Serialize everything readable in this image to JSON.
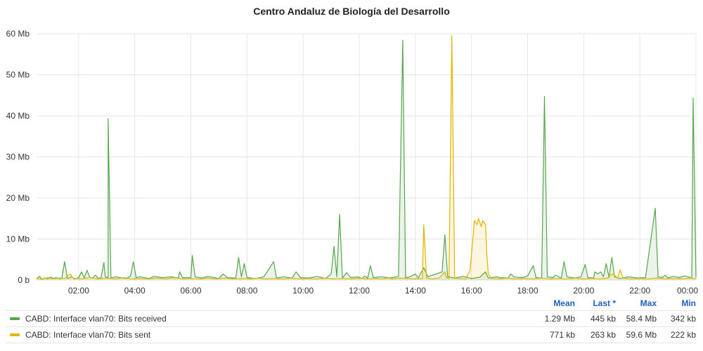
{
  "chart_data": {
    "type": "line",
    "title": "Centro Andaluz de Biología del Desarrollo",
    "xlabel": "",
    "ylabel": "",
    "x_range": [
      0.5,
      24.0
    ],
    "x_tick_labels": [
      "02:00",
      "04:00",
      "06:00",
      "08:00",
      "10:00",
      "12:00",
      "14:00",
      "16:00",
      "18:00",
      "20:00",
      "22:00",
      "00:00"
    ],
    "x_tick_values": [
      2,
      4,
      6,
      8,
      10,
      12,
      14,
      16,
      18,
      20,
      22,
      24
    ],
    "ylim": [
      0,
      60
    ],
    "y_tick_labels": [
      "0 b",
      "10 Mb",
      "20 Mb",
      "30 Mb",
      "40 Mb",
      "50 Mb",
      "60 Mb"
    ],
    "y_tick_values": [
      0,
      10,
      20,
      30,
      40,
      50,
      60
    ],
    "grid": true,
    "legend_position": "bottom",
    "series": [
      {
        "name": "CABD: Interface vlan70: Bits received",
        "color": "#56a64b",
        "points": [
          [
            0.5,
            0.3
          ],
          [
            0.6,
            0.9
          ],
          [
            0.7,
            0.2
          ],
          [
            0.8,
            0.5
          ],
          [
            0.9,
            0.3
          ],
          [
            1.0,
            0.7
          ],
          [
            1.1,
            0.4
          ],
          [
            1.2,
            0.6
          ],
          [
            1.35,
            0.3
          ],
          [
            1.4,
            0.5
          ],
          [
            1.5,
            4.5
          ],
          [
            1.6,
            0.4
          ],
          [
            1.75,
            0.8
          ],
          [
            1.85,
            0.3
          ],
          [
            2.0,
            0.6
          ],
          [
            2.1,
            2.0
          ],
          [
            2.2,
            0.5
          ],
          [
            2.3,
            2.4
          ],
          [
            2.4,
            0.6
          ],
          [
            2.5,
            0.5
          ],
          [
            2.6,
            1.2
          ],
          [
            2.7,
            0.4
          ],
          [
            2.8,
            0.6
          ],
          [
            2.9,
            4.3
          ],
          [
            2.95,
            0.8
          ],
          [
            3.05,
            0.6
          ],
          [
            3.05,
            39.3
          ],
          [
            3.15,
            0.5
          ],
          [
            3.3,
            0.8
          ],
          [
            3.5,
            0.6
          ],
          [
            3.7,
            0.4
          ],
          [
            3.85,
            1.0
          ],
          [
            3.95,
            4.5
          ],
          [
            4.05,
            0.6
          ],
          [
            4.2,
            0.8
          ],
          [
            4.5,
            0.4
          ],
          [
            4.7,
            0.9
          ],
          [
            5.0,
            0.6
          ],
          [
            5.3,
            0.8
          ],
          [
            5.55,
            0.5
          ],
          [
            5.6,
            2.0
          ],
          [
            5.7,
            0.6
          ],
          [
            6.0,
            0.6
          ],
          [
            6.05,
            6.0
          ],
          [
            6.15,
            0.8
          ],
          [
            6.4,
            0.5
          ],
          [
            6.6,
            0.9
          ],
          [
            7.0,
            0.4
          ],
          [
            7.15,
            1.5
          ],
          [
            7.3,
            0.6
          ],
          [
            7.6,
            0.5
          ],
          [
            7.7,
            5.5
          ],
          [
            7.8,
            0.8
          ],
          [
            7.9,
            4.0
          ],
          [
            8.0,
            0.6
          ],
          [
            8.3,
            0.4
          ],
          [
            8.6,
            0.8
          ],
          [
            8.95,
            4.5
          ],
          [
            9.05,
            0.5
          ],
          [
            9.3,
            0.8
          ],
          [
            9.6,
            0.5
          ],
          [
            9.75,
            2.0
          ],
          [
            9.9,
            0.6
          ],
          [
            10.2,
            0.5
          ],
          [
            10.5,
            0.9
          ],
          [
            10.8,
            0.4
          ],
          [
            11.0,
            1.5
          ],
          [
            11.1,
            8.2
          ],
          [
            11.2,
            0.8
          ],
          [
            11.3,
            16.0
          ],
          [
            11.4,
            0.5
          ],
          [
            11.55,
            1.8
          ],
          [
            11.7,
            0.6
          ],
          [
            11.95,
            0.8
          ],
          [
            12.1,
            0.4
          ],
          [
            12.2,
            1.0
          ],
          [
            12.3,
            0.5
          ],
          [
            12.4,
            3.5
          ],
          [
            12.5,
            0.6
          ],
          [
            12.8,
            0.8
          ],
          [
            13.1,
            0.5
          ],
          [
            13.4,
            0.9
          ],
          [
            13.55,
            58.4
          ],
          [
            13.65,
            0.6
          ],
          [
            13.8,
            0.8
          ],
          [
            14.0,
            1.5
          ],
          [
            14.1,
            0.5
          ],
          [
            14.3,
            3.0
          ],
          [
            14.45,
            0.8
          ],
          [
            14.6,
            1.2
          ],
          [
            14.75,
            1.5
          ],
          [
            14.95,
            2.0
          ],
          [
            15.05,
            11.0
          ],
          [
            15.15,
            0.8
          ],
          [
            15.4,
            0.5
          ],
          [
            15.7,
            0.9
          ],
          [
            16.0,
            0.4
          ],
          [
            16.3,
            0.7
          ],
          [
            16.5,
            2.0
          ],
          [
            16.6,
            0.5
          ],
          [
            16.9,
            0.8
          ],
          [
            17.0,
            0.6
          ],
          [
            17.3,
            0.5
          ],
          [
            17.4,
            1.5
          ],
          [
            17.5,
            0.8
          ],
          [
            17.8,
            0.6
          ],
          [
            18.0,
            1.0
          ],
          [
            18.2,
            3.5
          ],
          [
            18.3,
            0.6
          ],
          [
            18.5,
            0.5
          ],
          [
            18.6,
            44.7
          ],
          [
            18.7,
            0.8
          ],
          [
            18.9,
            0.6
          ],
          [
            19.0,
            1.2
          ],
          [
            19.2,
            0.5
          ],
          [
            19.3,
            4.5
          ],
          [
            19.4,
            0.8
          ],
          [
            19.7,
            0.5
          ],
          [
            19.9,
            0.8
          ],
          [
            20.05,
            3.8
          ],
          [
            20.15,
            0.6
          ],
          [
            20.35,
            0.5
          ],
          [
            20.4,
            2.0
          ],
          [
            20.5,
            1.5
          ],
          [
            20.6,
            2.0
          ],
          [
            20.7,
            0.8
          ],
          [
            20.8,
            4.0
          ],
          [
            20.9,
            0.6
          ],
          [
            21.0,
            5.5
          ],
          [
            21.1,
            0.8
          ],
          [
            21.3,
            0.4
          ],
          [
            21.6,
            0.8
          ],
          [
            21.9,
            0.5
          ],
          [
            22.2,
            0.6
          ],
          [
            22.55,
            17.5
          ],
          [
            22.65,
            0.8
          ],
          [
            22.8,
            0.6
          ],
          [
            22.9,
            1.2
          ],
          [
            23.0,
            0.5
          ],
          [
            23.2,
            0.9
          ],
          [
            23.4,
            0.6
          ],
          [
            23.6,
            1.0
          ],
          [
            23.85,
            0.5
          ],
          [
            23.9,
            44.3
          ],
          [
            24.0,
            0.6
          ]
        ]
      },
      {
        "name": "CABD: Interface vlan70: Bits sent",
        "color": "#e0b400",
        "points": [
          [
            0.5,
            0.5
          ],
          [
            0.7,
            0.2
          ],
          [
            0.9,
            0.6
          ],
          [
            1.1,
            0.3
          ],
          [
            1.3,
            0.5
          ],
          [
            1.5,
            0.4
          ],
          [
            1.7,
            1.5
          ],
          [
            1.8,
            0.5
          ],
          [
            2.1,
            0.3
          ],
          [
            2.4,
            0.6
          ],
          [
            2.7,
            0.3
          ],
          [
            3.0,
            0.5
          ],
          [
            3.3,
            0.3
          ],
          [
            3.6,
            0.6
          ],
          [
            3.9,
            0.3
          ],
          [
            4.2,
            0.4
          ],
          [
            4.5,
            0.3
          ],
          [
            4.8,
            0.5
          ],
          [
            5.1,
            0.3
          ],
          [
            5.4,
            0.6
          ],
          [
            5.7,
            0.3
          ],
          [
            6.0,
            0.4
          ],
          [
            6.3,
            0.3
          ],
          [
            6.6,
            0.5
          ],
          [
            6.9,
            0.3
          ],
          [
            7.2,
            0.5
          ],
          [
            7.5,
            0.3
          ],
          [
            7.8,
            0.4
          ],
          [
            8.1,
            0.3
          ],
          [
            8.4,
            0.5
          ],
          [
            8.7,
            0.3
          ],
          [
            9.0,
            0.4
          ],
          [
            9.3,
            0.3
          ],
          [
            9.6,
            0.5
          ],
          [
            9.9,
            0.3
          ],
          [
            10.2,
            0.4
          ],
          [
            10.5,
            0.3
          ],
          [
            10.8,
            0.5
          ],
          [
            11.1,
            0.3
          ],
          [
            11.4,
            0.4
          ],
          [
            11.7,
            0.3
          ],
          [
            12.0,
            0.5
          ],
          [
            12.3,
            0.3
          ],
          [
            12.6,
            0.4
          ],
          [
            12.8,
            0.3
          ],
          [
            13.0,
            0.5
          ],
          [
            13.2,
            0.3
          ],
          [
            13.3,
            0.4
          ],
          [
            13.45,
            0.5
          ],
          [
            13.8,
            0.4
          ],
          [
            14.0,
            0.3
          ],
          [
            14.25,
            0.4
          ],
          [
            14.3,
            13.5
          ],
          [
            14.4,
            0.5
          ],
          [
            14.6,
            0.3
          ],
          [
            14.85,
            0.5
          ],
          [
            15.05,
            2.0
          ],
          [
            15.1,
            0.6
          ],
          [
            15.2,
            0.4
          ],
          [
            15.3,
            59.6
          ],
          [
            15.4,
            0.5
          ],
          [
            15.5,
            0.4
          ],
          [
            15.8,
            0.3
          ],
          [
            15.95,
            2.5
          ],
          [
            16.05,
            10.0
          ],
          [
            16.1,
            14.5
          ],
          [
            16.2,
            13.5
          ],
          [
            16.25,
            15.0
          ],
          [
            16.35,
            13.0
          ],
          [
            16.4,
            14.5
          ],
          [
            16.5,
            13.5
          ],
          [
            16.55,
            6.0
          ],
          [
            16.6,
            1.5
          ],
          [
            16.7,
            0.4
          ],
          [
            17.0,
            0.3
          ],
          [
            17.3,
            0.5
          ],
          [
            17.6,
            0.3
          ],
          [
            17.9,
            0.4
          ],
          [
            18.2,
            0.3
          ],
          [
            18.5,
            0.5
          ],
          [
            18.8,
            0.3
          ],
          [
            19.1,
            0.4
          ],
          [
            19.4,
            0.3
          ],
          [
            19.7,
            0.5
          ],
          [
            20.0,
            0.3
          ],
          [
            20.3,
            0.4
          ],
          [
            20.6,
            0.3
          ],
          [
            20.85,
            0.5
          ],
          [
            20.9,
            1.0
          ],
          [
            21.05,
            1.5
          ],
          [
            21.2,
            0.5
          ],
          [
            21.3,
            2.5
          ],
          [
            21.4,
            0.5
          ],
          [
            21.7,
            0.3
          ],
          [
            22.0,
            0.4
          ],
          [
            22.3,
            0.3
          ],
          [
            22.6,
            0.5
          ],
          [
            22.9,
            0.3
          ],
          [
            23.2,
            0.4
          ],
          [
            23.5,
            0.3
          ],
          [
            23.8,
            0.5
          ],
          [
            24.0,
            0.3
          ]
        ]
      }
    ]
  },
  "legend": {
    "headers": {
      "mean": "Mean",
      "last": "Last *",
      "max": "Max",
      "min": "Min"
    },
    "rows": [
      {
        "name": "CABD: Interface vlan70: Bits received",
        "color": "#56a64b",
        "mean": "1.29 Mb",
        "last": "445 kb",
        "max": "58.4 Mb",
        "min": "342 kb"
      },
      {
        "name": "CABD: Interface vlan70: Bits sent",
        "color": "#e0b400",
        "mean": "771 kb",
        "last": "263 kb",
        "max": "59.6 Mb",
        "min": "222 kb"
      }
    ]
  }
}
